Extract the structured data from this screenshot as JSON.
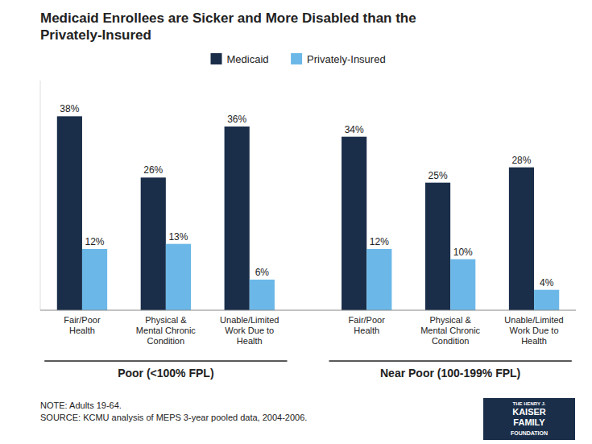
{
  "chart_data": {
    "type": "bar",
    "title": "Medicaid Enrollees are Sicker and More Disabled than the\nPrivately-Insured",
    "categories": [
      "Fair/Poor\nHealth",
      "Physical &\nMental Chronic\nCondition",
      "Unable/Limited\nWork Due to\nHealth",
      "Fair/Poor\nHealth",
      "Physical &\nMental Chronic\nCondition",
      "Unable/Limited\nWork Due to\nHealth"
    ],
    "groups": [
      {
        "label": "Poor (<100% FPL)",
        "size": 3
      },
      {
        "label": "Near Poor (100-199% FPL)",
        "size": 3
      }
    ],
    "series": [
      {
        "name": "Medicaid",
        "color": "#1a2e4a",
        "values": [
          38,
          26,
          36,
          34,
          25,
          28
        ],
        "value_labels": [
          "38%",
          "26%",
          "36%",
          "34%",
          "25%",
          "28%"
        ]
      },
      {
        "name": "Privately-Insured",
        "color": "#6bb8e8",
        "values": [
          12,
          13,
          6,
          12,
          10,
          4
        ],
        "value_labels": [
          "12%",
          "13%",
          "6%",
          "12%",
          "10%",
          "4%"
        ]
      }
    ],
    "ylim": [
      0,
      45
    ],
    "data_labels": true,
    "tick_labels": false,
    "grid": false,
    "legend": "top",
    "notes": [
      "NOTE: Adults 19-64.",
      "SOURCE: KCMU analysis of MEPS 3-year pooled data, 2004-2006."
    ],
    "logo_text": [
      "THE HENRY J.",
      "KAISER",
      "FAMILY",
      "FOUNDATION"
    ]
  }
}
